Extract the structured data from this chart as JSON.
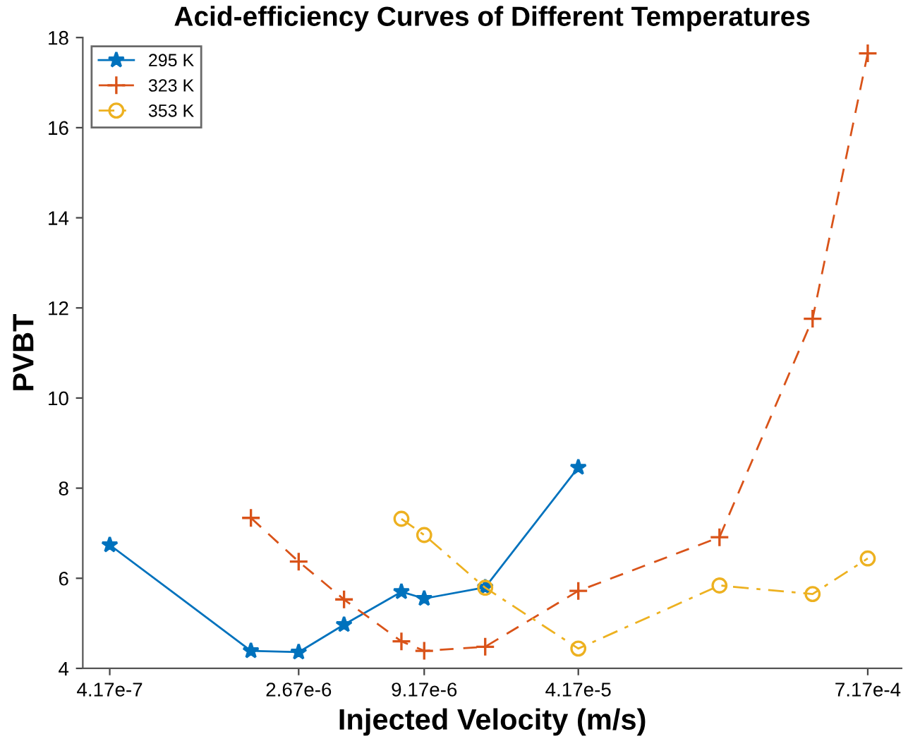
{
  "chart_data": {
    "type": "line",
    "title": "Acid-efficiency Curves of Different Temperatures",
    "xlabel": "Injected Velocity (m/s)",
    "ylabel": "PVBT",
    "log": "x",
    "xlim": [
      3.2e-07,
      0.001
    ],
    "xticks": [
      {
        "value": 4.17e-07,
        "label": "4.17e-7"
      },
      {
        "value": 2.67e-06,
        "label": "2.67e-6"
      },
      {
        "value": 9.17e-06,
        "label": "9.17e-6"
      },
      {
        "value": 4.17e-05,
        "label": "4.17e-5"
      },
      {
        "value": 0.000717,
        "label": "7.17e-4"
      }
    ],
    "ylim": [
      4,
      18
    ],
    "yticks": [
      4,
      6,
      8,
      10,
      12,
      14,
      16,
      18
    ],
    "grid": false,
    "legend": "top left",
    "series": [
      {
        "name": "295 K",
        "color": "#0072bd",
        "marker": "star",
        "line_style": "solid",
        "x": [
          4.17e-07,
          1.67e-06,
          2.67e-06,
          4.17e-06,
          7.33e-06,
          9.17e-06,
          1.67e-05,
          4.17e-05
        ],
        "values": [
          6.74,
          4.39,
          4.36,
          4.97,
          5.7,
          5.55,
          5.8,
          8.46
        ]
      },
      {
        "name": "323 K",
        "color": "#d95319",
        "marker": "cross",
        "line_style": "dashed",
        "x": [
          1.67e-06,
          2.67e-06,
          4.17e-06,
          7.33e-06,
          9.17e-06,
          1.67e-05,
          4.17e-05,
          0.000167,
          0.000417,
          0.000717
        ],
        "values": [
          7.34,
          6.37,
          5.53,
          4.6,
          4.39,
          4.48,
          5.72,
          6.91,
          11.76,
          17.65
        ]
      },
      {
        "name": "353 K",
        "color": "#edb120",
        "marker": "circle",
        "line_style": "dashdot",
        "x": [
          7.33e-06,
          9.17e-06,
          1.67e-05,
          4.17e-05,
          0.000167,
          0.000417,
          0.000717
        ],
        "values": [
          7.32,
          6.96,
          5.79,
          4.44,
          5.84,
          5.65,
          6.44
        ]
      }
    ]
  }
}
